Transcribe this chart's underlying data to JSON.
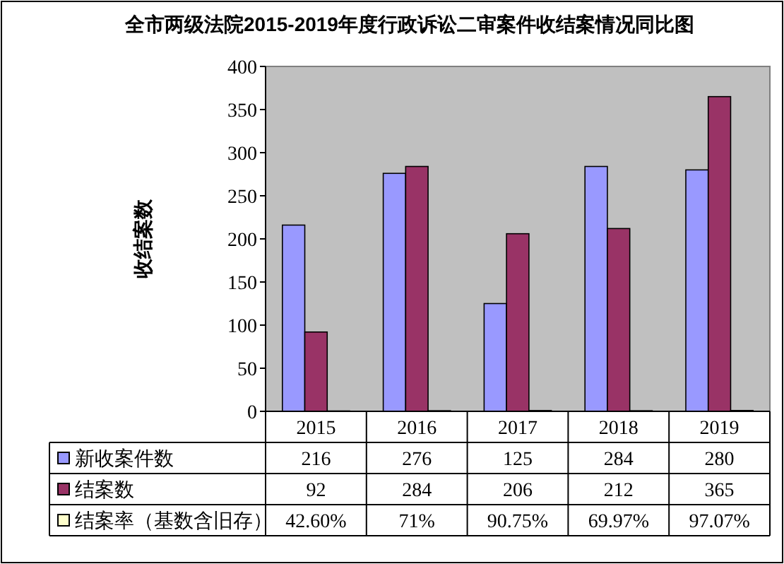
{
  "chart_data": {
    "type": "bar",
    "title": "全市两级法院2015-2019年度行政诉讼二审案件收结案情况同比图",
    "ylabel": "收结案数",
    "categories": [
      "2015",
      "2016",
      "2017",
      "2018",
      "2019"
    ],
    "series": [
      {
        "name": "新收案件数",
        "color": "#9999ff",
        "values": [
          216,
          276,
          125,
          284,
          280
        ],
        "value_labels": [
          "216",
          "276",
          "125",
          "284",
          "280"
        ]
      },
      {
        "name": "结案数",
        "color": "#993366",
        "values": [
          92,
          284,
          206,
          212,
          365
        ],
        "value_labels": [
          "92",
          "284",
          "206",
          "212",
          "365"
        ]
      },
      {
        "name": "结案率（基数含旧存）",
        "color": "#ffffcc",
        "values": [
          0.426,
          0.71,
          0.9075,
          0.6997,
          0.9707
        ],
        "value_labels": [
          "42.60%",
          "71%",
          "90.75%",
          "69.97%",
          "97.07%"
        ]
      }
    ],
    "ylim": [
      0,
      400
    ],
    "yticks": [
      0,
      50,
      100,
      150,
      200,
      250,
      300,
      350,
      400
    ],
    "grid": false,
    "legend": "bottom"
  }
}
